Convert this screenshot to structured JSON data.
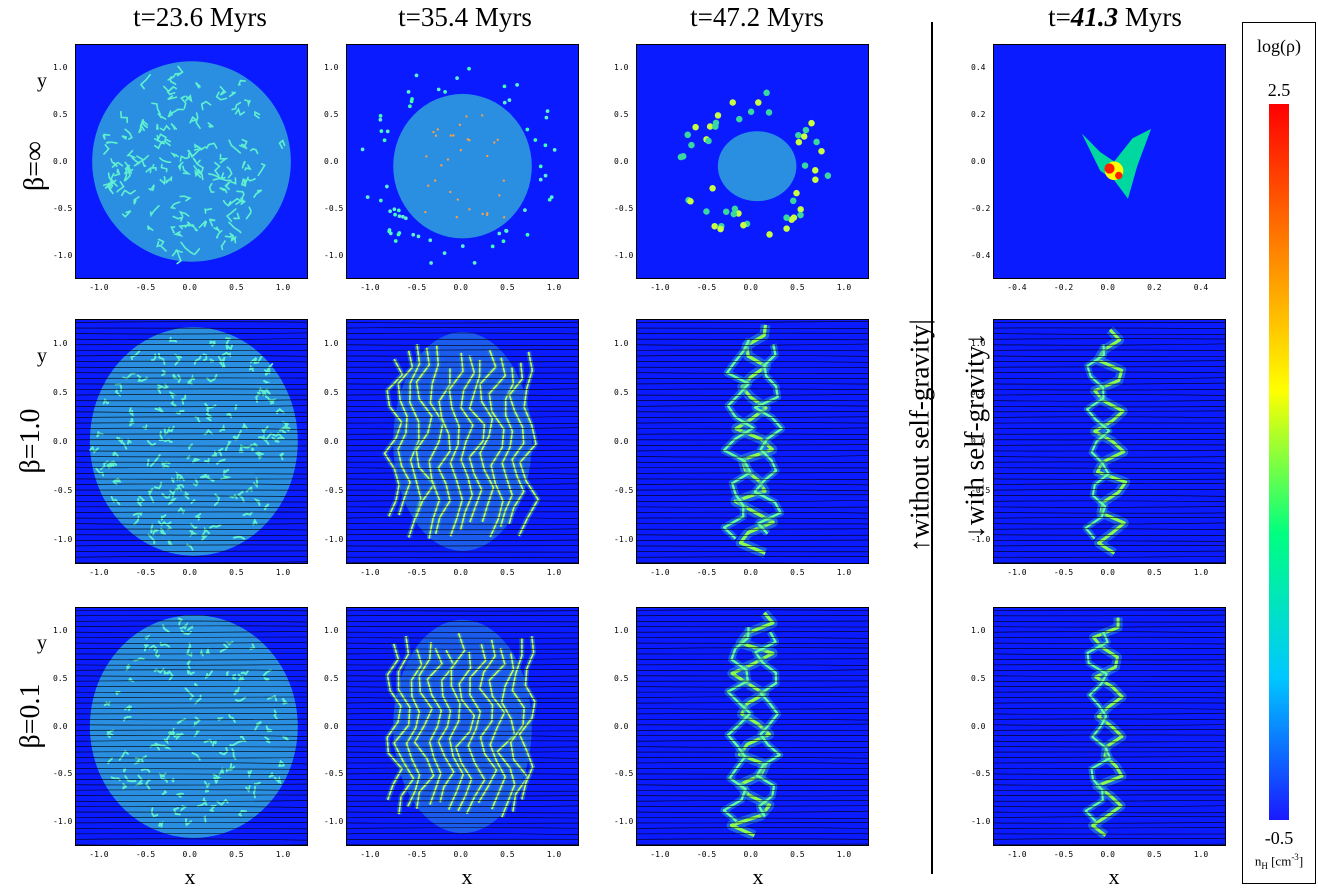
{
  "column_titles": [
    "t=23.6 Myrs",
    "t=35.4 Myrs",
    "t=47.2 Myrs"
  ],
  "right_column_title": {
    "prefix": "t=",
    "value": "41.3",
    "suffix": " Myrs"
  },
  "row_labels": [
    "β=∞",
    "β=1.0",
    "β=0.1"
  ],
  "y_label": "y",
  "x_label": "x",
  "side_labels": {
    "without": "without self-gravity",
    "with": "with self-gravity"
  },
  "tick_labels": {
    "standard": [
      "-1.0",
      "-0.5",
      "0.0",
      "0.5",
      "1.0"
    ],
    "zoom": [
      "-0.4",
      "-0.2",
      "0.0",
      "0.2",
      "0.4"
    ]
  },
  "colorbar": {
    "title": "log(ρ)",
    "max_label": "2.5",
    "min_label": "-0.5",
    "units_label": "n",
    "units_sub": "H",
    "units_rest": " [cm",
    "units_sup": "-3",
    "units_end": "]",
    "colors": [
      "#1a1aff",
      "#00c8ff",
      "#00ff80",
      "#ffff00",
      "#ff8000",
      "#ff0000"
    ]
  },
  "colors": {
    "background_field": "#0a1bff",
    "cloud": "#2a8fe0",
    "filament": "#5ff0d0"
  }
}
